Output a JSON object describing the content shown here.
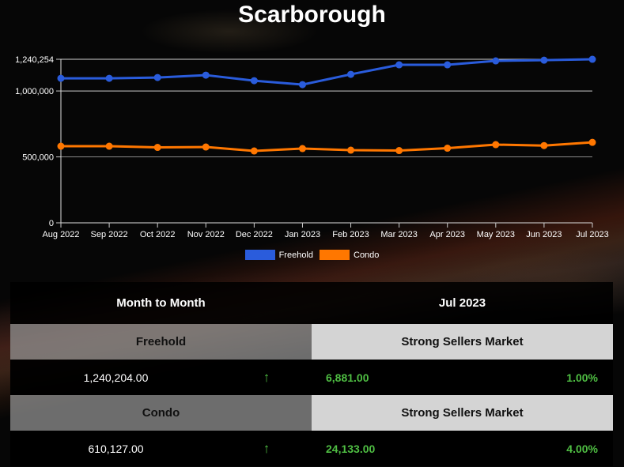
{
  "title": "Scarborough",
  "legend": [
    {
      "label": "Freehold",
      "color": "#2a5cdc"
    },
    {
      "label": "Condo",
      "color": "#ff7700"
    }
  ],
  "axis": {
    "y_ticks": [
      "1,240,254",
      "1,000,000",
      "500,000",
      "0"
    ],
    "x_ticks": [
      "Aug 2022",
      "Sep 2022",
      "Oct 2022",
      "Nov 2022",
      "Dec 2022",
      "Jan 2023",
      "Feb 2023",
      "Mar 2023",
      "Apr 2023",
      "May 2023",
      "Jun 2023",
      "Jul 2023"
    ]
  },
  "chart_data": {
    "type": "line",
    "title": "Scarborough",
    "xlabel": "",
    "ylabel": "",
    "ylim": [
      0,
      1240254
    ],
    "y_ticks": [
      0,
      500000,
      1000000,
      1240254
    ],
    "grid": true,
    "legend_position": "bottom",
    "categories": [
      "Aug 2022",
      "Sep 2022",
      "Oct 2022",
      "Nov 2022",
      "Dec 2022",
      "Jan 2023",
      "Feb 2023",
      "Mar 2023",
      "Apr 2023",
      "May 2023",
      "Jun 2023",
      "Jul 2023"
    ],
    "series": [
      {
        "name": "Freehold",
        "color": "#2a5cdc",
        "values": [
          1096000,
          1096000,
          1102000,
          1120000,
          1078000,
          1048000,
          1126000,
          1198000,
          1198000,
          1228000,
          1233323,
          1240204
        ]
      },
      {
        "name": "Condo",
        "color": "#ff7700",
        "values": [
          581000,
          581000,
          572000,
          575000,
          545000,
          563000,
          551000,
          548000,
          566000,
          593000,
          585994,
          610127
        ]
      }
    ]
  },
  "table": {
    "header": {
      "left": "Month to Month",
      "right": "Jul 2023"
    },
    "rows": [
      {
        "type": "Freehold",
        "status": "Strong Sellers Market",
        "value": "1,240,204.00",
        "trend": "↑",
        "change": "6,881.00",
        "percent": "1.00%"
      },
      {
        "type": "Condo",
        "status": "Strong Sellers Market",
        "value": "610,127.00",
        "trend": "↑",
        "change": "24,133.00",
        "percent": "4.00%"
      }
    ]
  }
}
